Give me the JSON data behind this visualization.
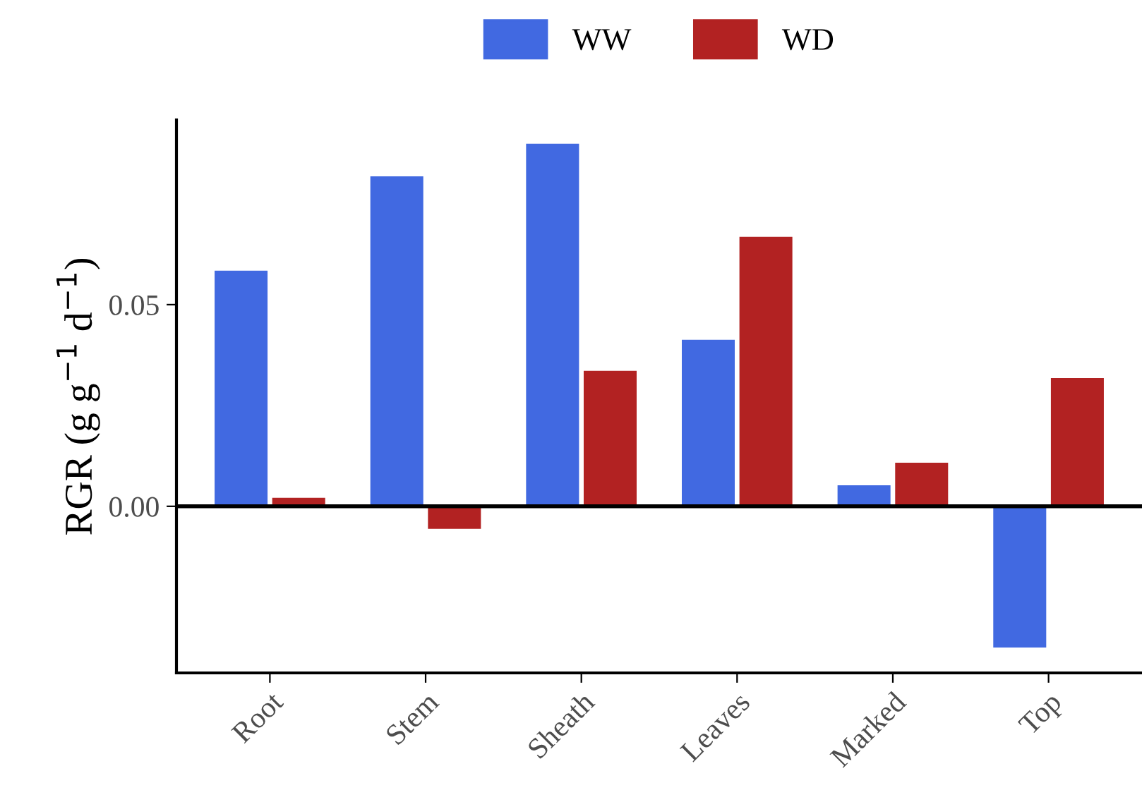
{
  "chart_data": {
    "type": "bar",
    "categories": [
      "Root",
      "Stem",
      "Sheath",
      "Leaves",
      "Marked",
      "Top"
    ],
    "series": [
      {
        "name": "WW",
        "color": "#4169e1",
        "values": [
          0.0584,
          0.0818,
          0.0899,
          0.0413,
          0.0052,
          -0.035
        ]
      },
      {
        "name": "WD",
        "color": "#b22222",
        "values": [
          0.0021,
          -0.0056,
          0.0336,
          0.0668,
          0.0108,
          0.0318
        ]
      }
    ],
    "ylabel": "RGR (g g$^{−1}$ d$^{−1}$)",
    "ylim": [
      -0.0413,
      0.0958
    ],
    "yticks": [
      {
        "value": 0,
        "label": "0.00"
      },
      {
        "value": 0.05,
        "label": "0.05"
      }
    ],
    "ref_lines": [
      {
        "axis": "y",
        "value": 0,
        "color": "#000000",
        "line_style": "solid"
      }
    ],
    "legend": "top",
    "grid": false
  }
}
